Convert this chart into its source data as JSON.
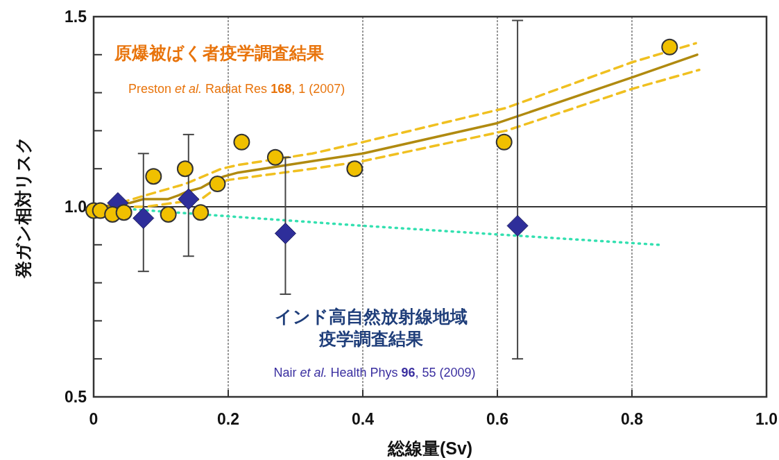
{
  "chart_data": {
    "type": "scatter",
    "xlabel": "総線量(Sv)",
    "ylabel": "発ガン相対リスク",
    "xlim": [
      0,
      1
    ],
    "ylim": [
      0.5,
      1.5
    ],
    "xticks": [
      0,
      0.2,
      0.4,
      0.6,
      0.8,
      {
        "value": 1,
        "label": "1.0"
      }
    ],
    "yticks": [
      0.5,
      {
        "value": 0.6,
        "label": null
      },
      {
        "value": 0.7,
        "label": null
      },
      {
        "value": 0.8,
        "label": null
      },
      {
        "value": 0.9,
        "label": null
      },
      {
        "value": 1,
        "label": "1.0"
      },
      {
        "value": 1.1,
        "label": null
      },
      {
        "value": 1.2,
        "label": null
      },
      {
        "value": 1.3,
        "label": null
      },
      {
        "value": 1.4,
        "label": null
      },
      1.5
    ],
    "grid": "x",
    "ref_lines": [
      {
        "axis": "y",
        "value": 1,
        "color": "#333333",
        "line_style": "solid"
      }
    ],
    "annotations": [
      "原爆被ばく者疫学調査結果",
      "Preston *et al.* Radiat Res **168**, 1 (2007)",
      "インド高自然放射線地域",
      "疫学調査結果",
      "Nair *et al.* Health Phys **96**, 55 (2009)"
    ],
    "series": [
      {
        "type": "line",
        "color": "#33e0b0",
        "line_style": "dotted",
        "marker": "none",
        "x": [
          0.06,
          0.2,
          0.4,
          0.84
        ],
        "values": [
          0.993,
          0.975,
          0.95,
          0.9
        ]
      },
      {
        "type": "line",
        "color": "#f0c020",
        "line_style": "dashed",
        "marker": "none",
        "x": [
          0.02,
          0.077,
          0.136,
          0.19,
          0.215,
          0.325,
          0.4,
          0.613,
          0.8,
          0.895
        ],
        "values": [
          1.0,
          1.03,
          1.06,
          1.1,
          1.11,
          1.14,
          1.17,
          1.26,
          1.38,
          1.43
        ]
      },
      {
        "type": "line",
        "color": "#f0c020",
        "line_style": "dashed",
        "marker": "none",
        "x": [
          0.02,
          0.077,
          0.16,
          0.198,
          0.325,
          0.4,
          0.613,
          0.8,
          0.9
        ],
        "values": [
          1.0,
          1.0,
          1.02,
          1.07,
          1.1,
          1.12,
          1.2,
          1.31,
          1.36
        ]
      },
      {
        "type": "line",
        "color": "#b08a10",
        "line_style": "solid",
        "marker": "none",
        "x": [
          0.01,
          0.054,
          0.074,
          0.11,
          0.126,
          0.139,
          0.16,
          0.18,
          0.194,
          0.215,
          0.325,
          0.4,
          0.6,
          0.8,
          0.897
        ],
        "values": [
          1.0,
          1.01,
          1.02,
          1.02,
          1.03,
          1.04,
          1.05,
          1.07,
          1.08,
          1.09,
          1.12,
          1.14,
          1.22,
          1.34,
          1.4
        ]
      },
      {
        "color": "#2e2e9a",
        "marker": "diamond",
        "x": [
          0.036,
          0.074,
          0.141,
          0.285,
          0.63
        ],
        "values": [
          1.01,
          0.97,
          1.02,
          0.93,
          0.95
        ],
        "errors": [
          null,
          [
            0.83,
            1.14
          ],
          [
            0.87,
            1.19
          ],
          [
            0.77,
            1.13
          ],
          [
            0.6,
            1.49
          ]
        ]
      },
      {
        "color": "#f0c000",
        "marker": "circle",
        "x": [
          0.0,
          0.01,
          0.028,
          0.045,
          0.089,
          0.111,
          0.136,
          0.159,
          0.184,
          0.22,
          0.27,
          0.388,
          0.61,
          0.856
        ],
        "values": [
          0.99,
          0.99,
          0.98,
          0.985,
          1.08,
          0.98,
          1.1,
          0.985,
          1.06,
          1.17,
          1.13,
          1.1,
          1.17,
          1.42
        ]
      }
    ]
  }
}
